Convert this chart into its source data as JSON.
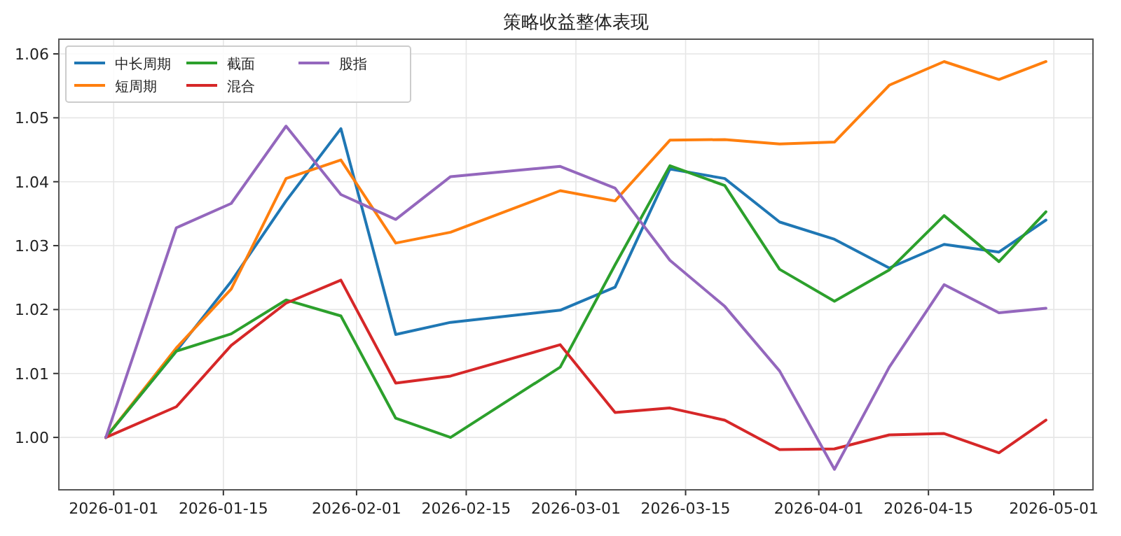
{
  "chart_data": {
    "type": "line",
    "title": "策略收益整体表现",
    "x": [
      "2025-12-31",
      "2026-01-09",
      "2026-01-16",
      "2026-01-23",
      "2026-01-30",
      "2026-02-06",
      "2026-02-13",
      "2026-02-27",
      "2026-03-06",
      "2026-03-13",
      "2026-03-20",
      "2026-03-27",
      "2026-04-03",
      "2026-04-10",
      "2026-04-17",
      "2026-04-24",
      "2026-04-30"
    ],
    "series": [
      {
        "name": "中长周期",
        "color": "#1f77b4",
        "values": [
          1.0,
          1.0135,
          1.0244,
          1.037,
          1.0483,
          1.0161,
          1.018,
          1.0199,
          1.0235,
          1.042,
          1.0405,
          1.0337,
          1.031,
          1.0265,
          1.0302,
          1.029,
          1.034
        ]
      },
      {
        "name": "短周期",
        "color": "#ff7f0e",
        "values": [
          1.0,
          1.014,
          1.0232,
          1.0405,
          1.0434,
          1.0304,
          1.0321,
          1.0386,
          1.037,
          1.0465,
          1.0466,
          1.0459,
          1.0462,
          1.0551,
          1.0588,
          1.056,
          1.0588
        ]
      },
      {
        "name": "截面",
        "color": "#2ca02c",
        "values": [
          1.0,
          1.0135,
          1.0162,
          1.0215,
          1.019,
          1.003,
          1.0,
          1.011,
          1.027,
          1.0425,
          1.0394,
          1.0263,
          1.0213,
          1.0262,
          1.0347,
          1.0275,
          1.0353
        ]
      },
      {
        "name": "混合",
        "color": "#d62728",
        "values": [
          1.0,
          1.0048,
          1.0144,
          1.021,
          1.0246,
          1.0085,
          1.0096,
          1.0145,
          1.0039,
          1.0046,
          1.0027,
          0.9981,
          0.9982,
          1.0004,
          1.0006,
          0.9976,
          1.0027
        ]
      },
      {
        "name": "股指",
        "color": "#9467bd",
        "values": [
          1.0,
          1.0328,
          1.0366,
          1.0487,
          1.038,
          1.0341,
          1.0408,
          1.0424,
          1.039,
          1.0277,
          1.0205,
          1.0104,
          0.995,
          1.011,
          1.0239,
          1.0195,
          1.0202
        ]
      }
    ],
    "xlim": [
      "2025-12-25",
      "2026-05-06"
    ],
    "xticks": [
      "2026-01-01",
      "2026-01-15",
      "2026-02-01",
      "2026-02-15",
      "2026-03-01",
      "2026-03-15",
      "2026-04-01",
      "2026-04-15",
      "2026-05-01"
    ],
    "ylim": [
      0.9918,
      1.0623
    ],
    "yticks": [
      {
        "value": 1.0,
        "label": "1.00"
      },
      {
        "value": 1.01,
        "label": "1.01"
      },
      {
        "value": 1.02,
        "label": "1.02"
      },
      {
        "value": 1.03,
        "label": "1.03"
      },
      {
        "value": 1.04,
        "label": "1.04"
      },
      {
        "value": 1.05,
        "label": "1.05"
      },
      {
        "value": 1.06,
        "label": "1.06"
      }
    ],
    "grid": true,
    "legend": "top left",
    "marker": "none",
    "line_style": "solid"
  }
}
